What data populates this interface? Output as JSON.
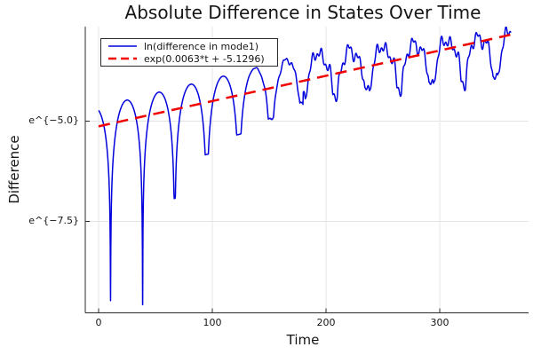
{
  "chart_data": {
    "type": "line",
    "title": "Absolute Difference in States Over Time",
    "xlabel": "Time",
    "ylabel": "Difference",
    "xlim": [
      -11.72,
      378.1
    ],
    "ylim_ln": [
      -9.779,
      -2.644
    ],
    "grid": true,
    "legend_position": "top-left",
    "background": "#ffffff",
    "grid_color": "#e4e4e4",
    "axis_color": "#2b2b2b",
    "text_color": "#151515",
    "xticks": {
      "values": [
        0,
        100,
        200,
        300
      ],
      "labels": [
        "0",
        "100",
        "200",
        "300"
      ]
    },
    "yticks": {
      "values": [
        -5.0,
        -7.5
      ],
      "labels": [
        "e^{−5.0}",
        "e^{−7.5}"
      ]
    },
    "series": [
      {
        "name": "ln(difference in mode1)",
        "color": "#0202dd",
        "style": "solid",
        "width": 1.5,
        "description": "natural log of |state difference|: exponentially growing oscillation with sharp cusp minima every ~28 time units; first two cusps plunge near e^-9.5; becomes noisy/chaotic after t~180; final values rise toward e^-2.8",
        "model": {
          "type": "log_abs_oscillation",
          "t_range": [
            0,
            362.5
          ],
          "step": 0.25,
          "env_early": {
            "slope": 0.00704,
            "intercept": -4.65,
            "t_max": 180
          },
          "env_late": {
            "slope": 0.00298,
            "ref_t": 180,
            "ref_v": -3.383
          },
          "cusp_start": 10.5,
          "cusp_period": 28.2,
          "cusp_depths": [
            4.9,
            5.2,
            2.75,
            1.85,
            1.55,
            1.35,
            1.2
          ],
          "late_arch_floor": 1.5,
          "late_arch_scale": 0.7,
          "noise": [
            {
              "amp": 0.12,
              "period": 8.1,
              "phase": 0.5
            },
            {
              "amp": 0.08,
              "period": 3.77,
              "phase": 1.7
            },
            {
              "amp": 0.07,
              "period": 13.9,
              "phase": 3.0
            }
          ],
          "noise_ramp": [
            130,
            180
          ],
          "end_lift": {
            "t_start": 356,
            "amount": 0.14
          }
        }
      },
      {
        "name": "exp(0.0063*t + -5.1296)",
        "color": "#f00000",
        "style": "dashed",
        "width": 2.5,
        "dash": [
          13,
          8
        ],
        "model": {
          "type": "linear_in_ln",
          "slope": 0.0063,
          "intercept": -5.1296,
          "t_range": [
            0,
            362
          ]
        }
      }
    ]
  }
}
